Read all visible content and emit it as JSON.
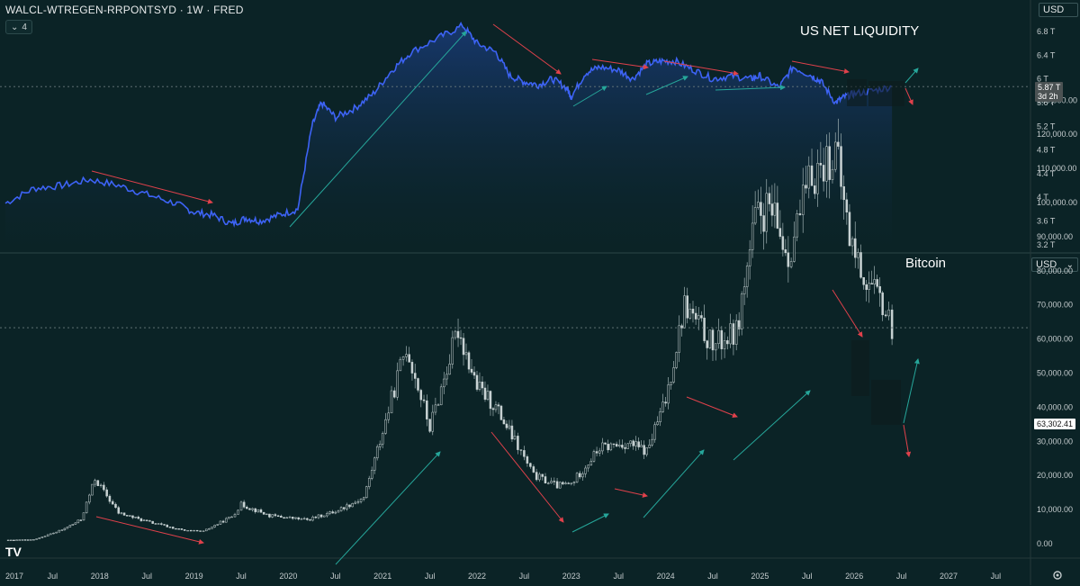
{
  "header": {
    "symbol_title": "WALCL-WTREGEN-RRPONTSYD · 1W · FRED",
    "collapse_count": "4"
  },
  "top_panel": {
    "label": "US NET LIQUIDITY",
    "unit": "USD",
    "last_value_label": "5.87 T",
    "countdown_label": "3d 2h"
  },
  "bottom_panel": {
    "label": "Bitcoin",
    "unit": "USD",
    "unit_dropdown": "⌄",
    "last_value_label": "63,302.41"
  },
  "footer": {
    "logo_text": "TV",
    "settings_icon": "gear-icon"
  },
  "colors": {
    "background": "#0b2326",
    "liquidity_line": "#3d63f5",
    "down_arrow": "#e0414b",
    "up_arrow": "#26a69a"
  },
  "chart_data": [
    {
      "type": "area",
      "title": "US NET LIQUIDITY",
      "series_unit": "USD (trillions)",
      "y_ticks": [
        "6.8 T",
        "6.4 T",
        "6 T",
        "5.6 T",
        "5.2 T",
        "4.8 T",
        "4.4 T",
        "4 T",
        "3.6 T",
        "3.2 T"
      ],
      "ylim": [
        3.2,
        6.9
      ],
      "x": [
        2017.0,
        2017.3,
        2017.6,
        2017.9,
        2018.2,
        2018.5,
        2018.8,
        2019.0,
        2019.2,
        2019.4,
        2019.55,
        2019.7,
        2019.9,
        2020.1,
        2020.25,
        2020.35,
        2020.5,
        2020.7,
        2020.9,
        2021.1,
        2021.3,
        2021.6,
        2021.85,
        2022.0,
        2022.2,
        2022.35,
        2022.5,
        2022.65,
        2022.8,
        2022.95,
        2023.0,
        2023.15,
        2023.3,
        2023.5,
        2023.65,
        2023.8,
        2023.95,
        2024.1,
        2024.3,
        2024.5,
        2024.7,
        2024.9,
        2025.0,
        2025.2,
        2025.35,
        2025.55,
        2025.65,
        2025.8,
        2025.9,
        2026.0,
        2026.2,
        2026.4
      ],
      "values": [
        3.9,
        4.15,
        4.2,
        4.3,
        4.2,
        4.05,
        3.9,
        3.75,
        3.7,
        3.55,
        3.65,
        3.6,
        3.7,
        3.8,
        5.2,
        5.6,
        5.35,
        5.5,
        5.75,
        6.15,
        6.45,
        6.7,
        6.9,
        6.6,
        6.45,
        6.05,
        5.95,
        5.9,
        6.0,
        5.85,
        5.7,
        6.1,
        6.2,
        6.15,
        6.0,
        6.25,
        6.3,
        6.3,
        6.15,
        6.0,
        6.05,
        6.0,
        6.05,
        5.85,
        6.2,
        6.05,
        5.95,
        5.6,
        5.7,
        5.75,
        5.8,
        5.87
      ]
    },
    {
      "type": "candlestick",
      "title": "Bitcoin",
      "series_unit": "USD",
      "y_ticks": [
        "130,000.00",
        "120,000.00",
        "110,000.00",
        "100,000.00",
        "90,000.00",
        "80,000.00",
        "70,000.00",
        "60,000.00",
        "50,000.00",
        "40,000.00",
        "30,000.00",
        "20,000.00",
        "10,000.00",
        "0.00"
      ],
      "ylim": [
        0,
        135000
      ],
      "x_ticks": [
        "2017",
        "Jul",
        "2018",
        "Jul",
        "2019",
        "Jul",
        "2020",
        "Jul",
        "2021",
        "Jul",
        "2022",
        "Jul",
        "2023",
        "Jul",
        "2024",
        "Jul",
        "2025",
        "Jul",
        "2026",
        "Jul",
        "2027",
        "Jul"
      ],
      "x": [
        2017.0,
        2017.3,
        2017.6,
        2017.8,
        2017.95,
        2018.2,
        2018.5,
        2018.9,
        2019.1,
        2019.4,
        2019.5,
        2019.8,
        2020.2,
        2020.5,
        2020.8,
        2021.0,
        2021.25,
        2021.5,
        2021.8,
        2022.0,
        2022.2,
        2022.4,
        2022.6,
        2022.85,
        2023.0,
        2023.3,
        2023.6,
        2023.8,
        2024.0,
        2024.2,
        2024.5,
        2024.75,
        2024.95,
        2025.1,
        2025.3,
        2025.55,
        2025.8,
        2025.95,
        2026.1,
        2026.3,
        2026.4
      ],
      "values": [
        1000,
        1200,
        4000,
        7000,
        19000,
        9000,
        6500,
        3800,
        3600,
        8000,
        11500,
        8200,
        7000,
        9500,
        13500,
        33000,
        58000,
        34000,
        63000,
        46000,
        40000,
        30000,
        20000,
        17000,
        17500,
        28000,
        29500,
        27000,
        42000,
        70000,
        58000,
        62000,
        95000,
        98000,
        85000,
        108000,
        115000,
        90000,
        78000,
        70000,
        63302.41
      ]
    }
  ]
}
